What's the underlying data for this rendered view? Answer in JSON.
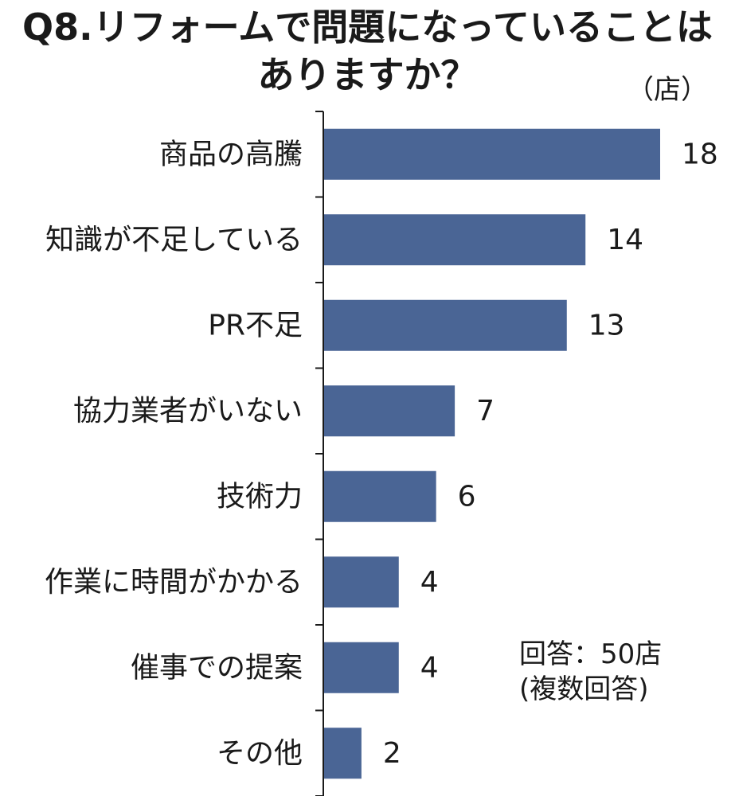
{
  "chart_data": {
    "type": "bar",
    "orientation": "horizontal",
    "title": [
      "Q8.リフォームで問題になっていることは",
      "ありますか？"
    ],
    "unit": "（店）",
    "categories": [
      "商品の高騰",
      "知識が不足している",
      "PR不足",
      "協力業者がいない",
      "技術力",
      "作業に時間がかかる",
      "催事での提案",
      "その他"
    ],
    "values": [
      18,
      14,
      13,
      7,
      6,
      4,
      4,
      2
    ],
    "xlim": [
      0,
      18
    ],
    "grid": false,
    "bar_color": "#4a6595",
    "notes": [
      "回答：50店",
      "(複数回答)"
    ]
  }
}
